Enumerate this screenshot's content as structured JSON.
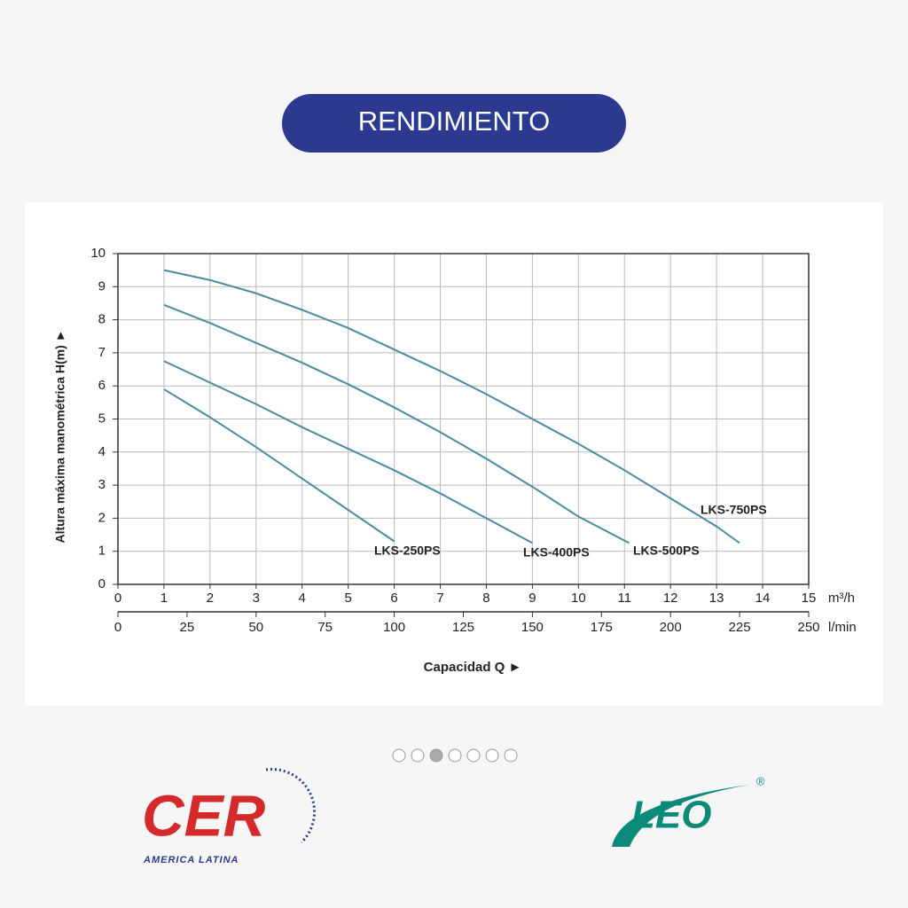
{
  "header": {
    "title": "RENDIMIENTO"
  },
  "chart_data": {
    "type": "line",
    "ylabel": "Altura máxima manométrica H(m) ►",
    "xlabel": "Capacidad Q ►",
    "xunit": "m³/h",
    "x2unit": "l/min",
    "xlim": [
      0,
      15
    ],
    "xticks": [
      0,
      1,
      2,
      3,
      4,
      5,
      6,
      7,
      8,
      9,
      10,
      11,
      12,
      13,
      14,
      15
    ],
    "x2lim": [
      0,
      250
    ],
    "x2ticks": [
      0,
      25,
      50,
      75,
      100,
      125,
      150,
      175,
      200,
      225,
      250
    ],
    "ylim": [
      0,
      10
    ],
    "yticks": [
      0,
      1,
      2,
      3,
      4,
      5,
      6,
      7,
      8,
      9,
      10
    ],
    "grid": true,
    "series": [
      {
        "name": "LKS-250PS",
        "color": "#4a8c99",
        "x": [
          1,
          2,
          3,
          4,
          5,
          6
        ],
        "values": [
          5.9,
          5.05,
          4.15,
          3.2,
          2.25,
          1.3
        ]
      },
      {
        "name": "LKS-400PS",
        "color": "#4a8c99",
        "x": [
          1,
          2,
          3,
          4,
          5,
          6,
          7,
          8,
          9
        ],
        "values": [
          6.75,
          6.1,
          5.45,
          4.75,
          4.1,
          3.45,
          2.75,
          2.0,
          1.25
        ]
      },
      {
        "name": "LKS-500PS",
        "color": "#4a8c99",
        "x": [
          1,
          2,
          3,
          4,
          5,
          6,
          7,
          8,
          9,
          10,
          11.1
        ],
        "values": [
          8.45,
          7.9,
          7.3,
          6.7,
          6.05,
          5.35,
          4.6,
          3.8,
          2.95,
          2.05,
          1.25
        ]
      },
      {
        "name": "LKS-750PS",
        "color": "#4a8c99",
        "x": [
          1,
          2,
          3,
          4,
          5,
          6,
          7,
          8,
          9,
          10,
          11,
          12,
          13,
          13.5
        ],
        "values": [
          9.5,
          9.2,
          8.8,
          8.3,
          7.75,
          7.1,
          6.45,
          5.75,
          5.0,
          4.25,
          3.45,
          2.6,
          1.75,
          1.25
        ]
      }
    ]
  },
  "logos": {
    "cer": "CER",
    "cer_sub": "AMERICA LATINA",
    "leo": "LEO",
    "reg": "®"
  }
}
